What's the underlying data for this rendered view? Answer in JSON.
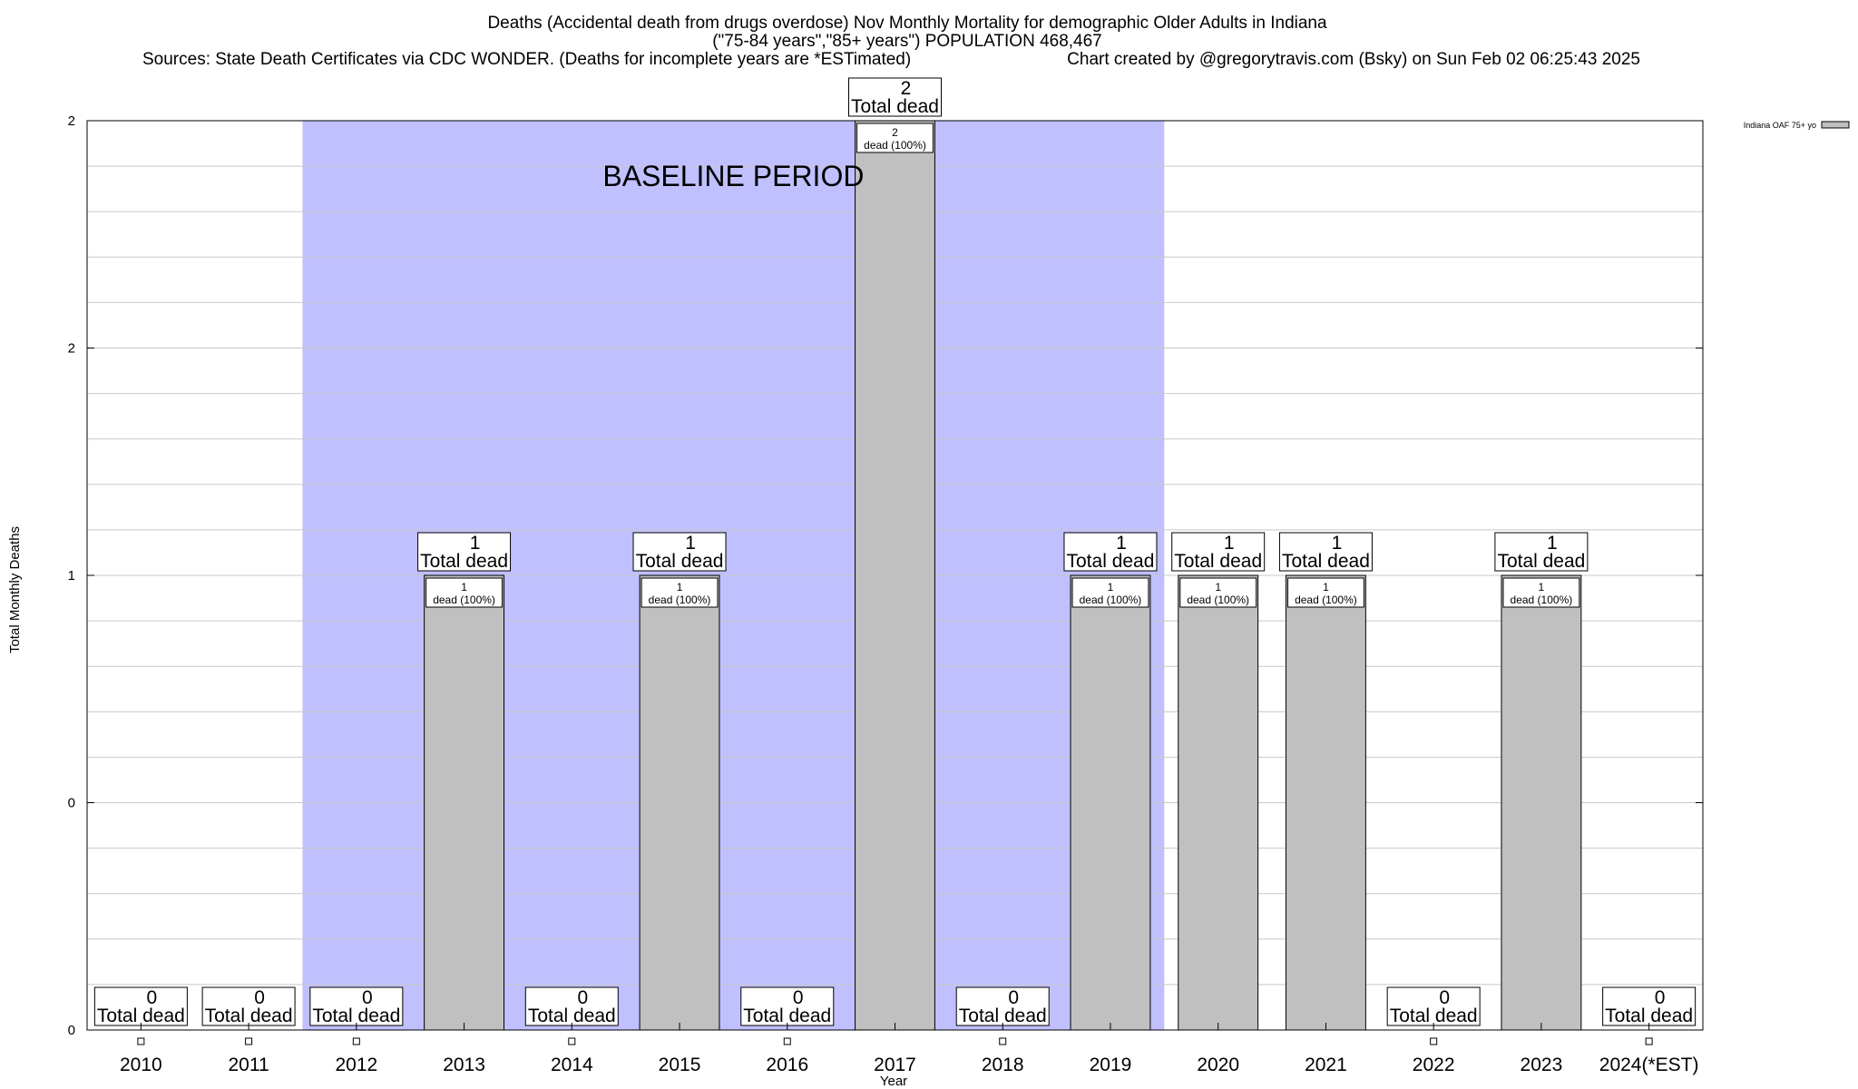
{
  "chart_data": {
    "type": "bar",
    "title_lines": [
      "Deaths (Accidental death from drugs overdose) Nov Monthly Mortality for demographic Older Adults in Indiana",
      "(\"75-84 years\",\"85+ years\") POPULATION 468,467"
    ],
    "sources": "Sources: State Death Certificates via CDC WONDER. (Deaths for incomplete years are *ESTimated)",
    "credit": "Chart created by @gregorytravis.com (Bsky) on Sun Feb 02 06:25:43 2025",
    "xlabel": "Year",
    "ylabel": "Total Monthly Deaths",
    "y_tick_labels": [
      "0",
      "0",
      "1",
      "2",
      "2"
    ],
    "ylim": [
      0,
      2
    ],
    "grid": true,
    "categories": [
      "2010",
      "2011",
      "2012",
      "2013",
      "2014",
      "2015",
      "2016",
      "2017",
      "2018",
      "2019",
      "2020",
      "2021",
      "2022",
      "2023",
      "2024(*EST)"
    ],
    "series": [
      {
        "name": "Indiana OAF 75+ yo",
        "values": [
          0,
          0,
          0,
          1,
          0,
          1,
          0,
          2,
          0,
          1,
          1,
          1,
          0,
          1,
          0
        ]
      }
    ],
    "total_label_suffix": "Total dead",
    "bar_label_suffix": "dead (100%)",
    "baseline_period": {
      "label": "BASELINE PERIOD",
      "start": "2012",
      "end": "2019"
    },
    "legend_position": "top-right",
    "colors": {
      "bar": "#c0c0c0",
      "baseline": "#c0c0ff",
      "grid": "#c8c8c8",
      "frame": "#000000"
    }
  }
}
